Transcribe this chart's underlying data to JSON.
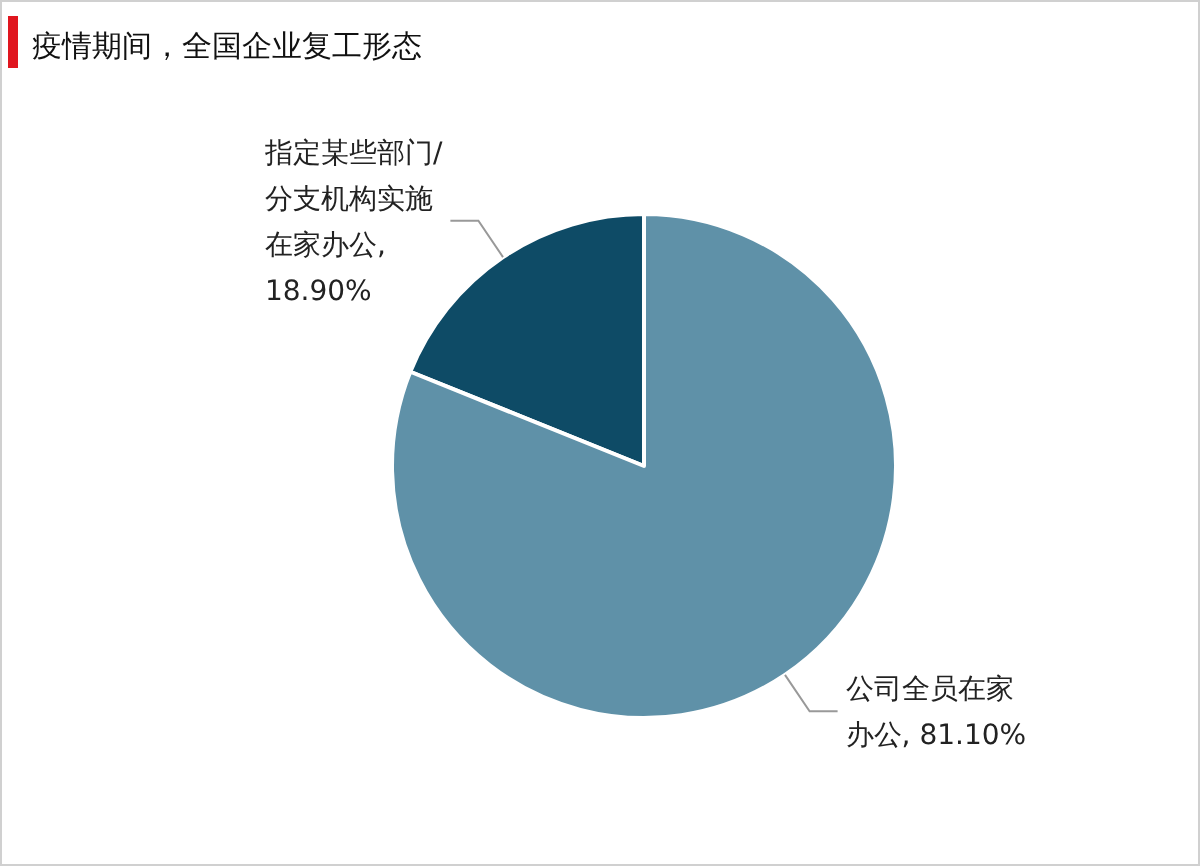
{
  "chart_data": {
    "type": "pie",
    "title": "疫情期间，全国企业复工形态",
    "categories": [
      "指定某些部门/分支机构实施在家办公",
      "公司全员在家办公"
    ],
    "values": [
      18.9,
      81.1
    ],
    "value_labels": [
      ", 18.90%",
      ", 81.10%"
    ],
    "colors": [
      "#0e4b66",
      "#5f91a8"
    ],
    "legend": false
  }
}
